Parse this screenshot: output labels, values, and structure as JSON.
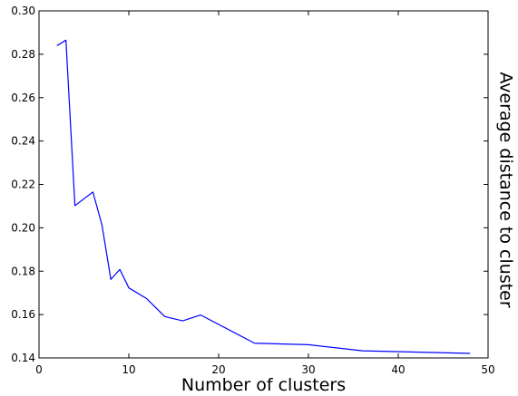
{
  "chart_data": {
    "type": "line",
    "title": "",
    "xlabel": "Number of clusters",
    "ylabel": "Average distance to cluster",
    "xlim": [
      0,
      50
    ],
    "ylim": [
      0.14,
      0.3
    ],
    "xticks": [
      0,
      10,
      20,
      30,
      40,
      50
    ],
    "xtick_labels": [
      "0",
      "10",
      "20",
      "30",
      "40",
      "50"
    ],
    "yticks": [
      0.14,
      0.16,
      0.18,
      0.2,
      0.22,
      0.24,
      0.26,
      0.28,
      0.3
    ],
    "ytick_labels": [
      "0.14",
      "0.16",
      "0.18",
      "0.20",
      "0.22",
      "0.24",
      "0.26",
      "0.28",
      "0.30"
    ],
    "grid": false,
    "legend": "none",
    "series": [
      {
        "color": "#0000ff",
        "x": [
          2,
          3,
          4,
          6,
          7,
          8,
          9,
          10,
          12,
          14,
          16,
          18,
          24,
          30,
          36,
          48
        ],
        "y": [
          0.284,
          0.2865,
          0.2102,
          0.2165,
          0.2015,
          0.1762,
          0.1808,
          0.1723,
          0.1673,
          0.1591,
          0.1571,
          0.1598,
          0.1468,
          0.1461,
          0.1433,
          0.1421
        ]
      }
    ]
  }
}
